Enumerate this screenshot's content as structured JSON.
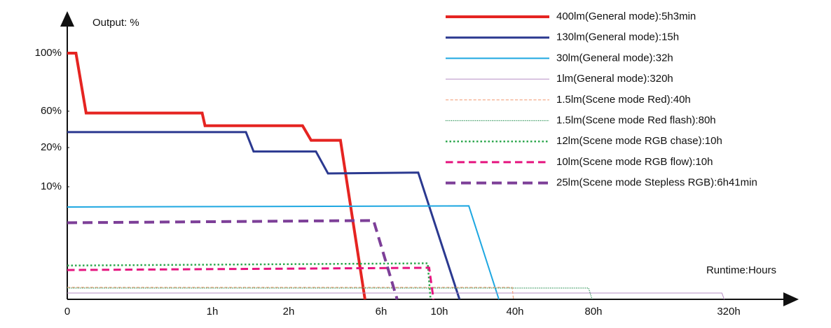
{
  "chart_data": {
    "type": "line",
    "y_label": "Output: %",
    "x_label": "Runtime:Hours",
    "xlim": [
      0,
      320
    ],
    "ylim": [
      0,
      100
    ],
    "xticks": [
      0,
      {
        "value": 1,
        "label": "1h"
      },
      {
        "value": 2,
        "label": "2h"
      },
      {
        "value": 6,
        "label": "6h"
      },
      {
        "value": 10,
        "label": "10h"
      },
      {
        "value": 40,
        "label": "40h"
      },
      {
        "value": 80,
        "label": "80h"
      },
      {
        "value": 320,
        "label": "320h"
      }
    ],
    "yticks": [
      {
        "value": 10,
        "label": "10%"
      },
      {
        "value": 20,
        "label": "20%"
      },
      {
        "value": 60,
        "label": "60%"
      },
      {
        "value": 100,
        "label": "100%"
      }
    ],
    "series": [
      {
        "name": "400lm(General mode):5h3min",
        "color": "#e52421",
        "line_style": "solid",
        "line_width": 4,
        "x": [
          0,
          0.06,
          0.13,
          0.93,
          0.95,
          2.6,
          2.97,
          4.24,
          5.3
        ],
        "values": [
          100,
          100,
          58,
          58,
          44,
          44,
          28,
          28,
          0
        ]
      },
      {
        "name": "130lm(General mode):15h",
        "color": "#2b3990",
        "line_style": "solid",
        "line_width": 3,
        "x": [
          0,
          1.44,
          1.54,
          3.18,
          3.7,
          8.55,
          18
        ],
        "values": [
          37,
          37,
          19,
          19,
          13.4,
          13.6,
          0
        ]
      },
      {
        "name": "30lm(General mode):32h",
        "color": "#1ea7e1",
        "line_style": "solid",
        "line_width": 2,
        "x": [
          0,
          21.7,
          33.6
        ],
        "values": [
          8.2,
          8.3,
          0
        ]
      },
      {
        "name": "1lm(General mode):320h",
        "color": "#b58cc4",
        "line_style": "solid",
        "line_width": 1,
        "x": [
          0,
          308,
          312
        ],
        "values": [
          0.56,
          0.56,
          0
        ]
      },
      {
        "name": "1.5lm(Scene mode Red):40h",
        "color": "#f4a27d",
        "line_style": "dashed",
        "line_width": 1.2,
        "x": [
          0,
          38.9,
          39.4
        ],
        "values": [
          1.06,
          1.06,
          0
        ]
      },
      {
        "name": "1.5lm(Scene mode Red flash):80h",
        "color": "#1d8a4a",
        "line_style": "dotted",
        "line_width": 1.2,
        "x": [
          0,
          77.5,
          79.3
        ],
        "values": [
          1.0,
          1.0,
          0
        ]
      },
      {
        "name": "12lm(Scene mode RGB chase):10h",
        "color": "#2fa84f",
        "line_style": "dotted",
        "line_width": 2.5,
        "x": [
          0,
          9.2,
          9.4
        ],
        "values": [
          3.0,
          3.2,
          0
        ]
      },
      {
        "name": "10lm(Scene mode RGB flow):10h",
        "color": "#e5157f",
        "line_style": "dashed",
        "line_width": 3,
        "x": [
          0,
          9.3,
          9.6
        ],
        "values": [
          2.6,
          2.8,
          0
        ]
      },
      {
        "name": "25lm(Scene mode Stepless RGB):6h41min",
        "color": "#7d3f98",
        "line_style": "dashed",
        "line_width": 4,
        "x": [
          0,
          5.67,
          7.1
        ],
        "values": [
          6.8,
          7.0,
          0
        ]
      }
    ]
  }
}
